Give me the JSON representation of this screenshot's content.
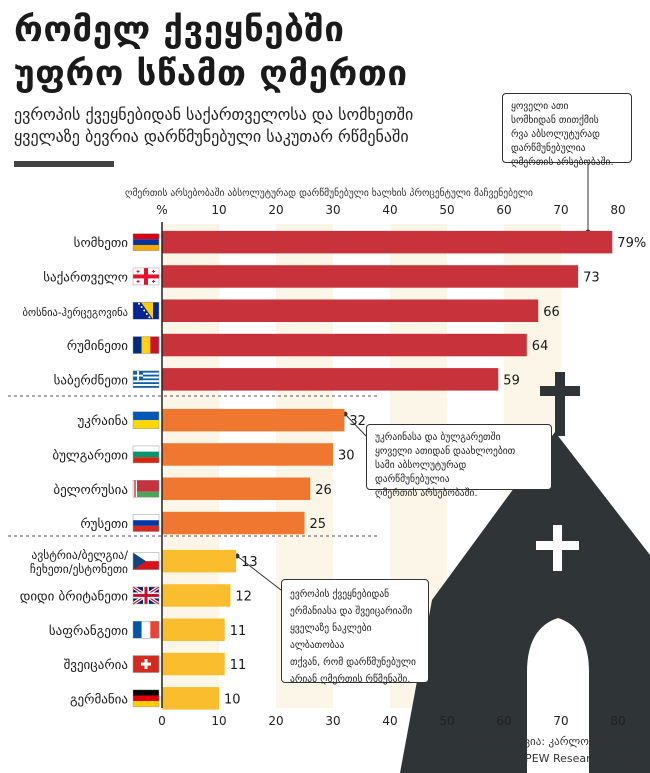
{
  "title": {
    "line1": "რომელ ქვეყნებში",
    "line2": "უფრო სწამთ ღმერთი"
  },
  "subtitle": {
    "line1": "ევროპის ქვეყნებიდან საქართველოსა და სომხეთში",
    "line2": "ყველაზე ბევრია დარწმუნებული საკუთარ რწმენაში"
  },
  "annotations": {
    "top": [
      "ყოველი ათი",
      "სომხიდან თითქმის",
      "რვა აბსოლუტურად",
      "დარწმუნებულია",
      "ღმერთის არსებობაში."
    ],
    "middle": [
      "უკრაინასა და ბულგარეთში",
      "ყოველი ათიდან დაახლოებით",
      "სამი აბსოლუტურად დარწმუნებულია",
      "ღმერთის არსებობაში."
    ],
    "bottom": [
      "ევროპის ქვეყნებიდან",
      "ერმანიასა და შვეიცარიაში",
      "ყველაზე ნაკლები ალბათობაა",
      "თქვან, რომ დარწმუნებული",
      "არიან ღმერთის რწმენაში."
    ]
  },
  "credits": {
    "visualization": "ვიზუალიზაცია: კარლოს კოელიო",
    "source": "წყარო: PEW Research Center"
  },
  "colors": {
    "high": "#c8323a",
    "mid": "#f0772f",
    "low": "#f9bd2d",
    "stripe": "#fbf6e8",
    "church": "#2f3437"
  },
  "chart_data": {
    "type": "bar",
    "orientation": "horizontal",
    "title": "ღმერთის არსებობაში აბსოლუტურად დარწმუნებული ხალხის პროცენტული მაჩვენებელი",
    "x_unit_label": "%",
    "xlim": [
      0,
      80
    ],
    "ticks": [
      0,
      10,
      20,
      30,
      40,
      50,
      60,
      70,
      80
    ],
    "value_suffix_first": "%",
    "groups": [
      {
        "color": "high",
        "items": [
          {
            "country": "სომხეთი",
            "value": 79,
            "flag": "armenia"
          },
          {
            "country": "საქართველო",
            "value": 73,
            "flag": "georgia"
          },
          {
            "country": "ბოსნია-ჰერცეგოვინა",
            "value": 66,
            "flag": "bosnia"
          },
          {
            "country": "რუმინეთი",
            "value": 64,
            "flag": "romania"
          },
          {
            "country": "საბერძნეთი",
            "value": 59,
            "flag": "greece"
          }
        ]
      },
      {
        "color": "mid",
        "items": [
          {
            "country": "უკრაინა",
            "value": 32,
            "flag": "ukraine"
          },
          {
            "country": "ბულგარეთი",
            "value": 30,
            "flag": "bulgaria"
          },
          {
            "country": "ბელორუსია",
            "value": 26,
            "flag": "belarus"
          },
          {
            "country": "რუსეთი",
            "value": 25,
            "flag": "russia"
          }
        ]
      },
      {
        "color": "low",
        "items": [
          {
            "country": "ავსტრია/ბელგია/ჩეხეთი/ესტონეთი",
            "country_lines": [
              "ავსტრია/ბელგია/",
              "ჩეხეთი/ესტონეთი"
            ],
            "value": 13,
            "flag": "czech"
          },
          {
            "country": "დიდი ბრიტანეთი",
            "value": 12,
            "flag": "uk"
          },
          {
            "country": "საფრანგეთი",
            "value": 11,
            "flag": "france"
          },
          {
            "country": "შვეიცარია",
            "value": 11,
            "flag": "switzerland"
          },
          {
            "country": "გერმანია",
            "value": 10,
            "flag": "germany"
          }
        ]
      }
    ]
  }
}
